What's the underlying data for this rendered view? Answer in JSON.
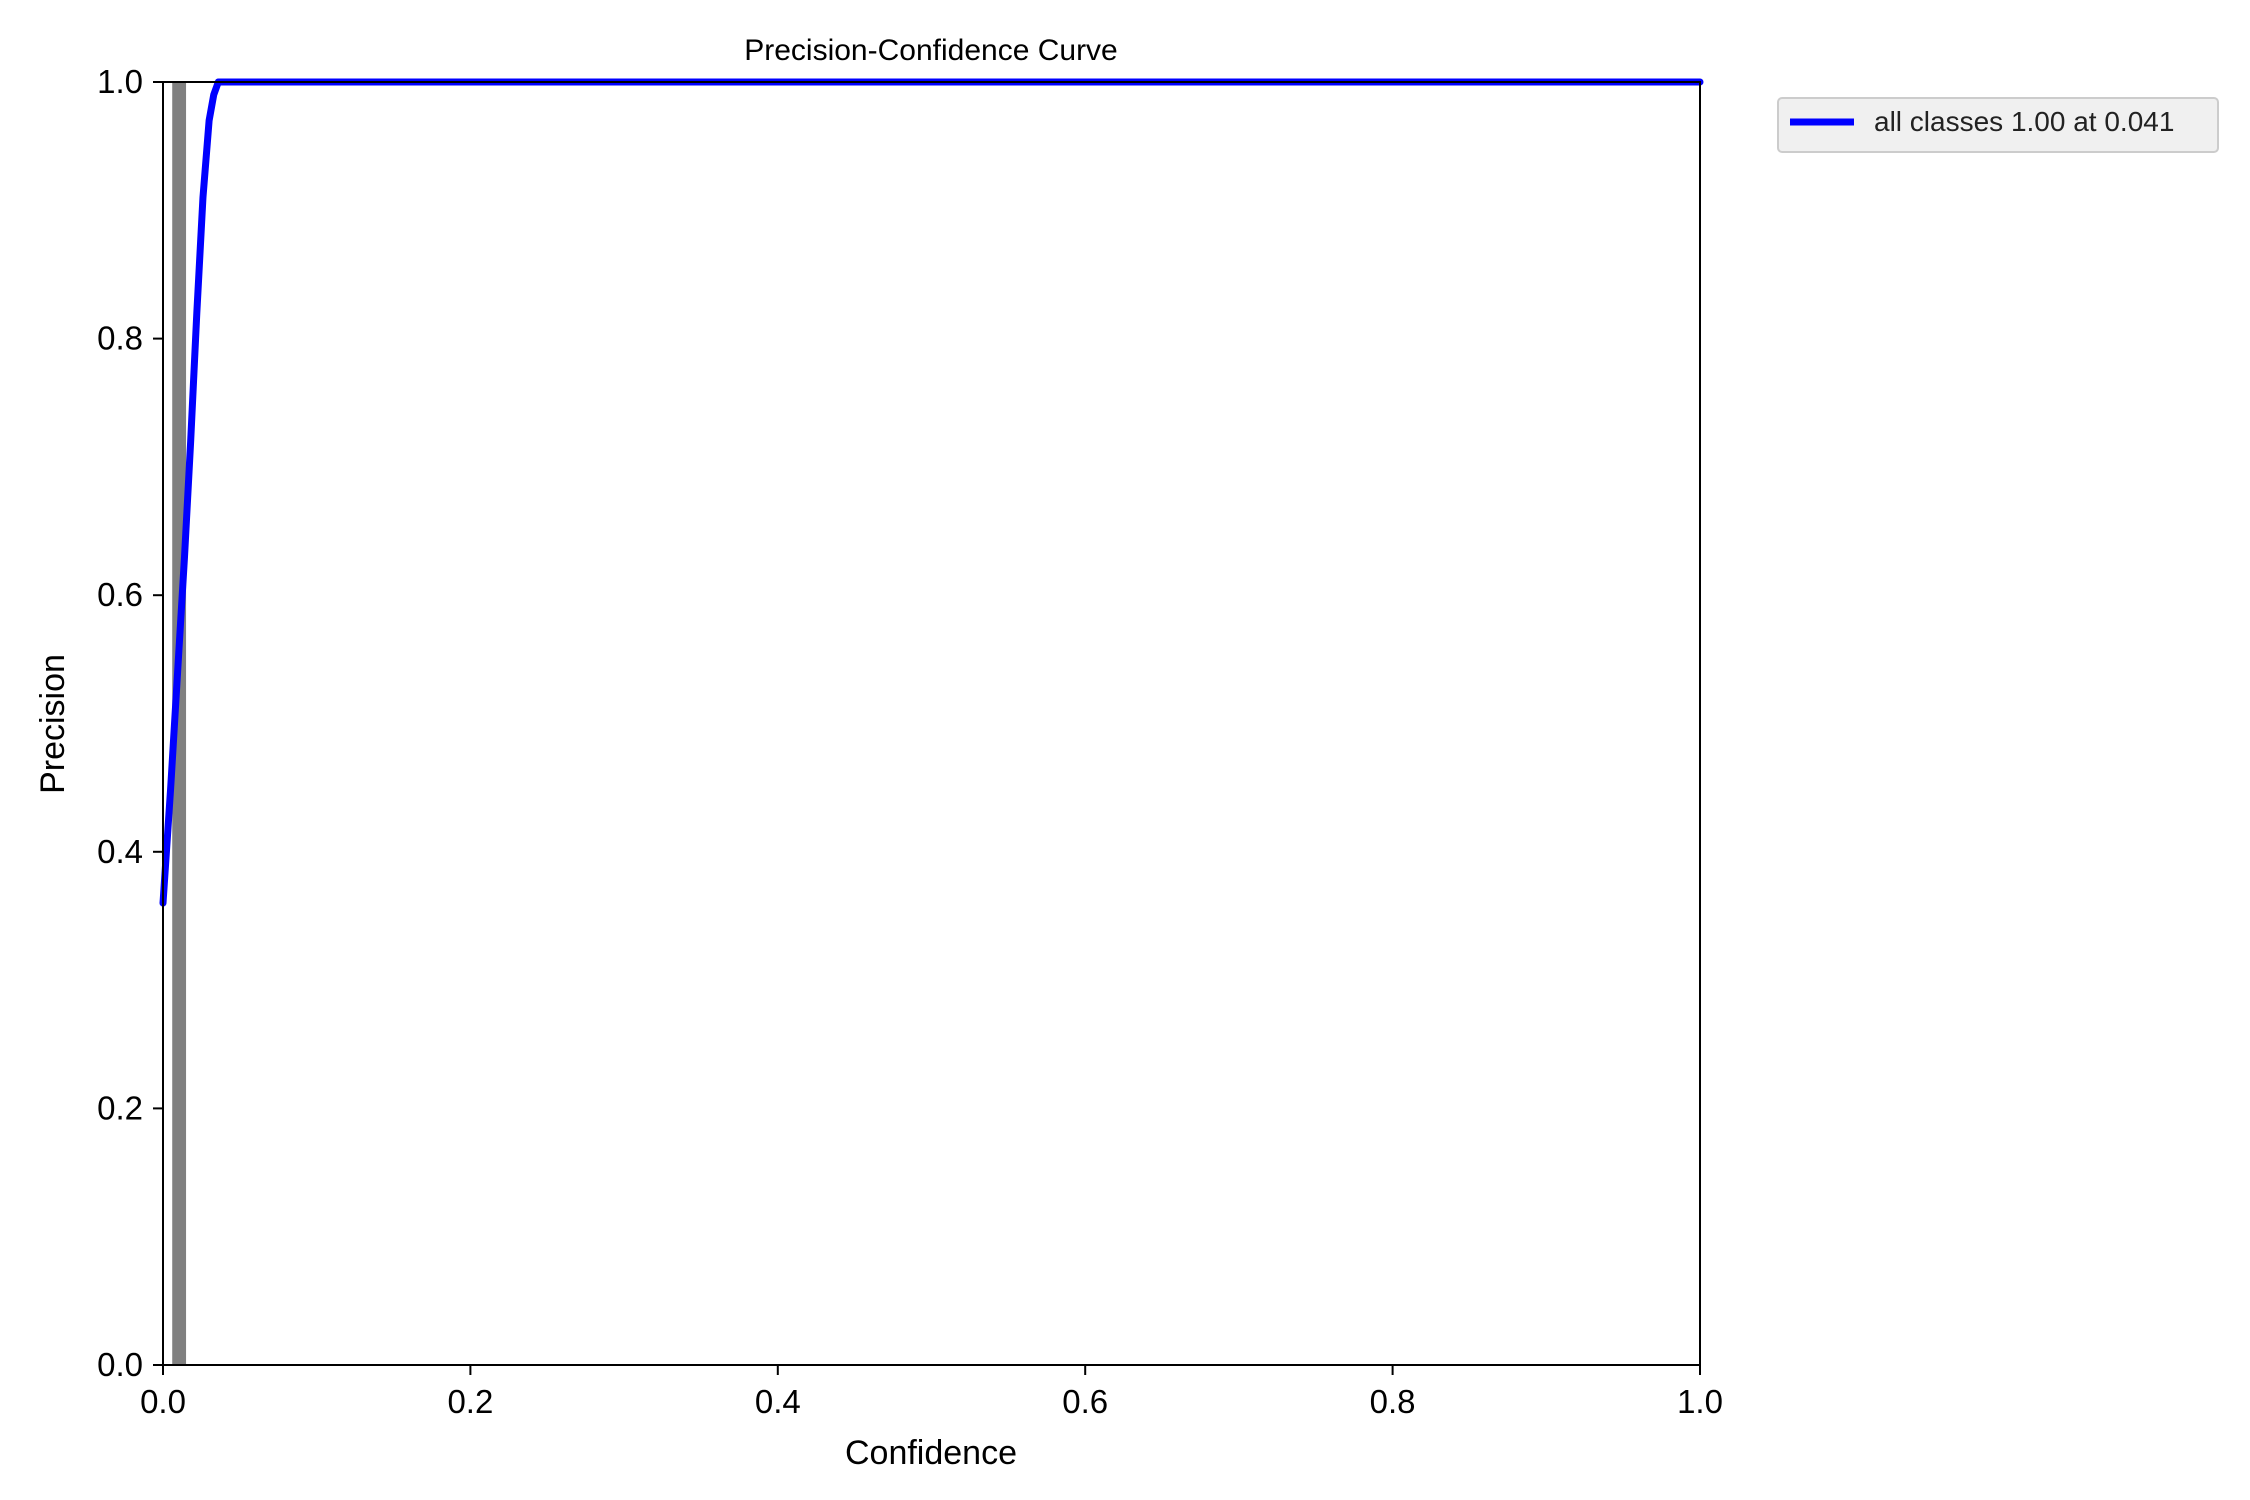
{
  "chart_data": {
    "type": "line",
    "title": "Precision-Confidence Curve",
    "xlabel": "Confidence",
    "ylabel": "Precision",
    "xlim": [
      0,
      1
    ],
    "ylim": [
      0,
      1
    ],
    "xticks": [
      "0.0",
      "0.2",
      "0.4",
      "0.6",
      "0.8",
      "1.0"
    ],
    "yticks": [
      "0.0",
      "0.2",
      "0.4",
      "0.6",
      "0.8",
      "1.0"
    ],
    "grid": false,
    "legend_position": "outside-top-right",
    "series": [
      {
        "name": "all classes 1.00 at 0.041",
        "color": "#0000ff",
        "x": [
          0.0,
          0.005,
          0.01,
          0.014,
          0.018,
          0.022,
          0.026,
          0.03,
          0.033,
          0.036,
          0.04,
          0.05,
          0.1,
          0.2,
          0.4,
          0.6,
          0.8,
          1.0
        ],
        "y": [
          0.36,
          0.45,
          0.55,
          0.63,
          0.72,
          0.82,
          0.91,
          0.97,
          0.99,
          1.0,
          1.0,
          1.0,
          1.0,
          1.0,
          1.0,
          1.0,
          1.0,
          1.0
        ]
      },
      {
        "name": "",
        "color": "#808080",
        "x": [
          0.006,
          0.006,
          0.015,
          0.015
        ],
        "y": [
          0.0,
          1.0,
          1.0,
          0.0
        ]
      }
    ]
  }
}
